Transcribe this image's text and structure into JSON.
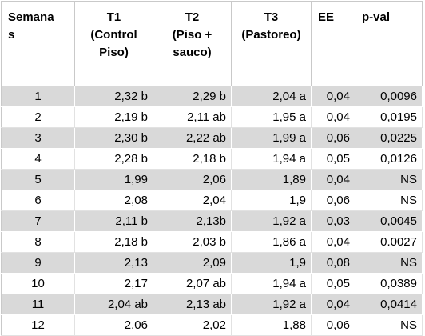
{
  "headers": [
    {
      "lines": [
        "Semana",
        "s"
      ]
    },
    {
      "lines": [
        "T1",
        "(Control",
        "Piso)"
      ]
    },
    {
      "lines": [
        "T2",
        "(Piso +",
        "sauco)"
      ]
    },
    {
      "lines": [
        "T3",
        "(Pastoreo)"
      ]
    },
    {
      "lines": [
        "EE"
      ]
    },
    {
      "lines": [
        "p-val"
      ]
    }
  ],
  "rows": [
    [
      "1",
      "2,32 b",
      "2,29 b",
      "2,04 a",
      "0,04",
      "0,0096"
    ],
    [
      "2",
      "2,19 b",
      "2,11 ab",
      "1,95 a",
      "0,04",
      "0,0195"
    ],
    [
      "3",
      "2,30 b",
      "2,22 ab",
      "1,99 a",
      "0,06",
      "0,0225"
    ],
    [
      "4",
      "2,28 b",
      "2,18 b",
      "1,94 a",
      "0,05",
      "0,0126"
    ],
    [
      "5",
      "1,99",
      "2,06",
      "1,89",
      "0,04",
      "NS"
    ],
    [
      "6",
      "2,08",
      "2,04",
      "1,9",
      "0,06",
      "NS"
    ],
    [
      "7",
      "2,11 b",
      "2,13b",
      "1,92 a",
      "0,03",
      "0,0045"
    ],
    [
      "8",
      "2,18 b",
      "2,03 b",
      "1,86 a",
      "0,04",
      "0.0027"
    ],
    [
      "9",
      "2,13",
      "2,09",
      "1,9",
      "0,08",
      "NS"
    ],
    [
      "10",
      "2,17",
      "2,07 ab",
      "1,94 a",
      "0,05",
      "0,0389"
    ],
    [
      "11",
      "2,04 ab",
      "2,13 ab",
      "1,92 a",
      "0,04",
      "0,0414"
    ],
    [
      "12",
      "2,06",
      "2,02",
      "1,88",
      "0,06",
      "NS"
    ]
  ]
}
